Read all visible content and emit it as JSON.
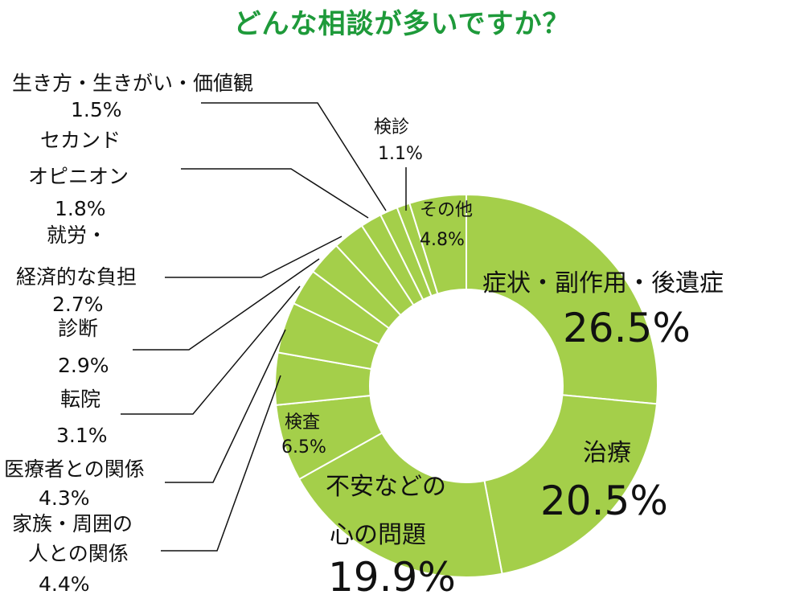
{
  "chart_data": {
    "type": "pie",
    "title": "どんな相談が多いですか？",
    "colors": {
      "slice_fill": "#a4cf4a",
      "slice_border": "#ffffff",
      "title_color": "#1e9a3a"
    },
    "slices": [
      {
        "label_lines": [
          "症状・副作用・後遺症"
        ],
        "value": 26.5,
        "value_text": "26.5%"
      },
      {
        "label_lines": [
          "治療"
        ],
        "value": 20.5,
        "value_text": "20.5%"
      },
      {
        "label_lines": [
          "不安などの",
          "心の問題"
        ],
        "value": 19.9,
        "value_text": "19.9%"
      },
      {
        "label_lines": [
          "検査"
        ],
        "value": 6.5,
        "value_text": "6.5%"
      },
      {
        "label_lines": [
          "家族・周囲の",
          "人との関係"
        ],
        "value": 4.4,
        "value_text": "4.4%"
      },
      {
        "label_lines": [
          "医療者との関係"
        ],
        "value": 4.3,
        "value_text": "4.3%"
      },
      {
        "label_lines": [
          "転院"
        ],
        "value": 3.1,
        "value_text": "3.1%"
      },
      {
        "label_lines": [
          "診断"
        ],
        "value": 2.9,
        "value_text": "2.9%"
      },
      {
        "label_lines": [
          "就労・",
          "経済的な負担"
        ],
        "value": 2.7,
        "value_text": "2.7%"
      },
      {
        "label_lines": [
          "セカンド",
          "オピニオン"
        ],
        "value": 1.8,
        "value_text": "1.8%"
      },
      {
        "label_lines": [
          "生き方・生きがい・価値観"
        ],
        "value": 1.5,
        "value_text": "1.5%"
      },
      {
        "label_lines": [
          "検診"
        ],
        "value": 1.1,
        "value_text": "1.1%"
      },
      {
        "label_lines": [
          "その他"
        ],
        "value": 4.8,
        "value_text": "4.8%"
      }
    ]
  }
}
